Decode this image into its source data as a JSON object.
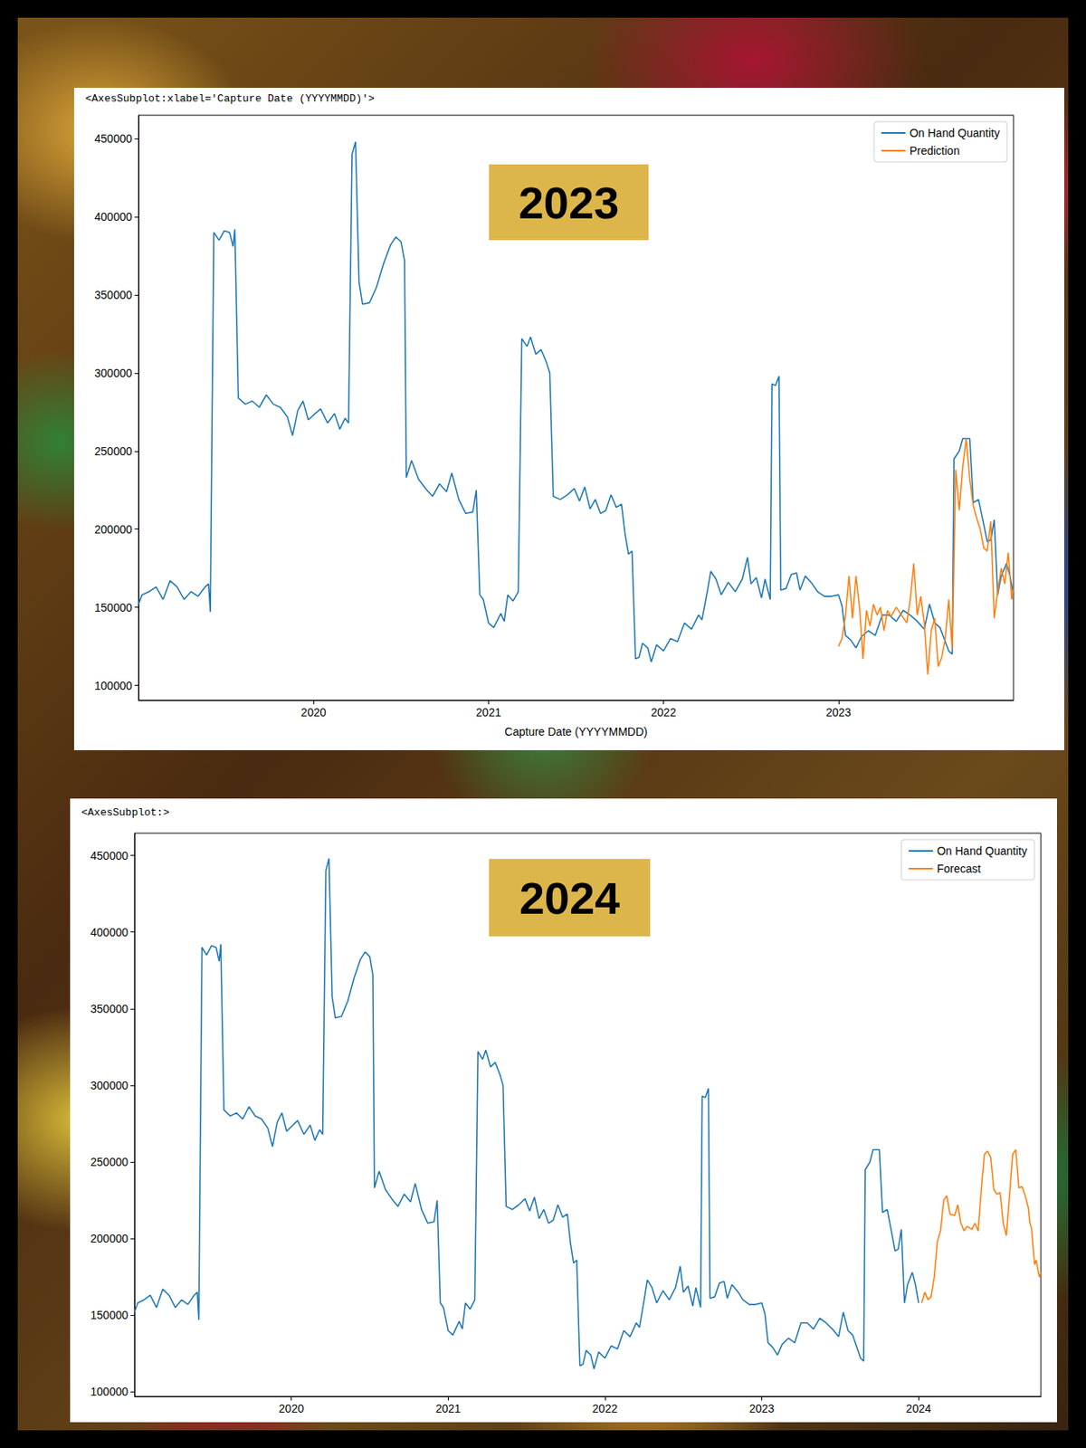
{
  "chart_data": [
    {
      "type": "line",
      "title": "2023",
      "x_label": "Capture Date (YYYYMMDD)",
      "annotations": [
        "<AxesSubplot:xlabel='Capture Date (YYYYMMDD)'>"
      ],
      "xlim": [
        2019.0,
        2024.0
      ],
      "xticks": [
        2020,
        2021,
        2022,
        2023
      ],
      "ylim": [
        90500,
        465000
      ],
      "yticks": [
        100000,
        150000,
        200000,
        250000,
        300000,
        350000,
        400000,
        450000
      ],
      "grid": false,
      "legend": "upper right",
      "series": [
        {
          "name": "On Hand Quantity",
          "color": "#1f77b4",
          "x": [
            2019.0,
            2019.02,
            2019.06,
            2019.1,
            2019.14,
            2019.18,
            2019.22,
            2019.26,
            2019.3,
            2019.34,
            2019.38,
            2019.4,
            2019.41,
            2019.43,
            2019.46,
            2019.49,
            2019.52,
            2019.54,
            2019.55,
            2019.57,
            2019.61,
            2019.65,
            2019.69,
            2019.73,
            2019.77,
            2019.81,
            2019.85,
            2019.88,
            2019.91,
            2019.94,
            2019.97,
            2020.0,
            2020.04,
            2020.08,
            2020.12,
            2020.15,
            2020.18,
            2020.2,
            2020.22,
            2020.24,
            2020.26,
            2020.28,
            2020.32,
            2020.36,
            2020.4,
            2020.44,
            2020.47,
            2020.5,
            2020.52,
            2020.53,
            2020.56,
            2020.6,
            2020.64,
            2020.68,
            2020.72,
            2020.76,
            2020.79,
            2020.83,
            2020.87,
            2020.91,
            2020.93,
            2020.95,
            2020.97,
            2021.0,
            2021.03,
            2021.07,
            2021.09,
            2021.11,
            2021.14,
            2021.17,
            2021.19,
            2021.22,
            2021.24,
            2021.27,
            2021.3,
            2021.33,
            2021.35,
            2021.37,
            2021.41,
            2021.45,
            2021.49,
            2021.52,
            2021.55,
            2021.58,
            2021.61,
            2021.64,
            2021.67,
            2021.7,
            2021.73,
            2021.76,
            2021.78,
            2021.8,
            2021.82,
            2021.84,
            2021.86,
            2021.88,
            2021.91,
            2021.93,
            2021.96,
            2022.0,
            2022.04,
            2022.08,
            2022.12,
            2022.16,
            2022.2,
            2022.22,
            2022.25,
            2022.27,
            2022.3,
            2022.33,
            2022.37,
            2022.41,
            2022.45,
            2022.48,
            2022.5,
            2022.53,
            2022.56,
            2022.58,
            2022.61,
            2022.62,
            2022.64,
            2022.66,
            2022.67,
            2022.7,
            2022.73,
            2022.76,
            2022.78,
            2022.81,
            2022.85,
            2022.88,
            2022.92,
            2022.96,
            2023.0,
            2023.02,
            2023.04,
            2023.07,
            2023.1,
            2023.13,
            2023.17,
            2023.21,
            2023.25,
            2023.29,
            2023.33,
            2023.37,
            2023.41,
            2023.45,
            2023.49,
            2023.52,
            2023.55,
            2023.58,
            2023.61,
            2023.63,
            2023.65,
            2023.66,
            2023.69,
            2023.71,
            2023.75,
            2023.77,
            2023.8,
            2023.83,
            2023.85,
            2023.87,
            2023.89,
            2023.91,
            2023.93,
            2023.96,
            2023.98,
            2024.0
          ],
          "values": [
            152000,
            158000,
            160000,
            163000,
            155000,
            167000,
            163000,
            155000,
            160000,
            157000,
            163000,
            165000,
            147000,
            390000,
            385000,
            391000,
            390000,
            381000,
            392000,
            284000,
            280000,
            282000,
            278000,
            286000,
            280000,
            278000,
            272000,
            260000,
            276000,
            282000,
            270000,
            273000,
            277000,
            268000,
            274000,
            264000,
            271000,
            268000,
            440000,
            448000,
            358000,
            344000,
            345000,
            355000,
            370000,
            382000,
            387000,
            384000,
            372000,
            233000,
            244000,
            232000,
            226000,
            221000,
            229000,
            224000,
            236000,
            219000,
            210000,
            211000,
            225000,
            158000,
            155000,
            140000,
            137000,
            146000,
            141000,
            158000,
            154000,
            160000,
            322000,
            317000,
            323000,
            312000,
            315000,
            307000,
            300000,
            221000,
            219000,
            222000,
            226000,
            218000,
            227000,
            213000,
            219000,
            210000,
            212000,
            222000,
            214000,
            216000,
            197000,
            184000,
            186000,
            117000,
            118000,
            127000,
            124000,
            115000,
            126000,
            122000,
            130000,
            128000,
            140000,
            136000,
            145000,
            142000,
            160000,
            173000,
            168000,
            158000,
            166000,
            160000,
            168000,
            182000,
            165000,
            169000,
            156000,
            168000,
            155000,
            293000,
            292000,
            298000,
            161000,
            162000,
            171000,
            172000,
            161000,
            170000,
            165000,
            160000,
            157000,
            157000,
            158000,
            151000,
            132000,
            129000,
            124000,
            131000,
            135000,
            132000,
            145000,
            145000,
            141000,
            148000,
            145000,
            141000,
            136000,
            152000,
            140000,
            137000,
            128000,
            122000,
            120000,
            245000,
            250000,
            258000,
            258000,
            217000,
            219000,
            203000,
            192000,
            193000,
            206000,
            158000,
            170000,
            178000,
            170000,
            158000
          ]
        },
        {
          "name": "Prediction",
          "color": "#ff7f0e",
          "x": [
            2023.0,
            2023.02,
            2023.04,
            2023.06,
            2023.08,
            2023.1,
            2023.12,
            2023.14,
            2023.16,
            2023.18,
            2023.2,
            2023.22,
            2023.24,
            2023.26,
            2023.28,
            2023.3,
            2023.33,
            2023.36,
            2023.39,
            2023.41,
            2023.43,
            2023.45,
            2023.47,
            2023.49,
            2023.51,
            2023.53,
            2023.55,
            2023.57,
            2023.59,
            2023.61,
            2023.63,
            2023.65,
            2023.67,
            2023.69,
            2023.71,
            2023.73,
            2023.75,
            2023.77,
            2023.79,
            2023.81,
            2023.83,
            2023.85,
            2023.87,
            2023.89,
            2023.91,
            2023.93,
            2023.95,
            2023.97,
            2023.99,
            2024.0
          ],
          "values": [
            125000,
            130000,
            145000,
            170000,
            143000,
            170000,
            150000,
            117000,
            148000,
            138000,
            152000,
            145000,
            150000,
            135000,
            148000,
            144000,
            150000,
            145000,
            140000,
            155000,
            178000,
            145000,
            157000,
            140000,
            107000,
            135000,
            143000,
            112000,
            118000,
            130000,
            155000,
            123000,
            238000,
            212000,
            240000,
            258000,
            232000,
            215000,
            207000,
            200000,
            188000,
            186000,
            205000,
            143000,
            160000,
            175000,
            165000,
            185000,
            155000,
            162000
          ]
        }
      ]
    },
    {
      "type": "line",
      "title": "2024",
      "annotations": [
        "<AxesSubplot:>"
      ],
      "xlim": [
        2019.0,
        2024.78
      ],
      "xticks": [
        2020,
        2021,
        2022,
        2023,
        2024
      ],
      "ylim": [
        97000,
        464500
      ],
      "yticks": [
        100000,
        150000,
        200000,
        250000,
        300000,
        350000,
        400000,
        450000
      ],
      "grid": false,
      "legend": "upper right",
      "series": [
        {
          "name": "On Hand Quantity",
          "color": "#1f77b4",
          "x": [
            2019.0,
            2019.02,
            2019.06,
            2019.1,
            2019.14,
            2019.18,
            2019.22,
            2019.26,
            2019.3,
            2019.34,
            2019.38,
            2019.4,
            2019.41,
            2019.43,
            2019.46,
            2019.49,
            2019.52,
            2019.54,
            2019.55,
            2019.57,
            2019.61,
            2019.65,
            2019.69,
            2019.73,
            2019.77,
            2019.81,
            2019.85,
            2019.88,
            2019.91,
            2019.94,
            2019.97,
            2020.0,
            2020.04,
            2020.08,
            2020.12,
            2020.15,
            2020.18,
            2020.2,
            2020.22,
            2020.24,
            2020.26,
            2020.28,
            2020.32,
            2020.36,
            2020.4,
            2020.44,
            2020.47,
            2020.5,
            2020.52,
            2020.53,
            2020.56,
            2020.6,
            2020.64,
            2020.68,
            2020.72,
            2020.76,
            2020.79,
            2020.83,
            2020.87,
            2020.91,
            2020.93,
            2020.95,
            2020.97,
            2021.0,
            2021.03,
            2021.07,
            2021.09,
            2021.11,
            2021.14,
            2021.17,
            2021.19,
            2021.22,
            2021.24,
            2021.27,
            2021.3,
            2021.33,
            2021.35,
            2021.37,
            2021.41,
            2021.45,
            2021.49,
            2021.52,
            2021.55,
            2021.58,
            2021.61,
            2021.64,
            2021.67,
            2021.7,
            2021.73,
            2021.76,
            2021.78,
            2021.8,
            2021.82,
            2021.84,
            2021.86,
            2021.88,
            2021.91,
            2021.93,
            2021.96,
            2022.0,
            2022.04,
            2022.08,
            2022.12,
            2022.16,
            2022.2,
            2022.22,
            2022.25,
            2022.27,
            2022.3,
            2022.33,
            2022.37,
            2022.41,
            2022.45,
            2022.48,
            2022.5,
            2022.53,
            2022.56,
            2022.58,
            2022.61,
            2022.62,
            2022.64,
            2022.66,
            2022.67,
            2022.7,
            2022.73,
            2022.76,
            2022.78,
            2022.81,
            2022.85,
            2022.88,
            2022.92,
            2022.96,
            2023.0,
            2023.02,
            2023.04,
            2023.07,
            2023.1,
            2023.13,
            2023.17,
            2023.21,
            2023.25,
            2023.29,
            2023.33,
            2023.37,
            2023.41,
            2023.45,
            2023.49,
            2023.52,
            2023.55,
            2023.58,
            2023.61,
            2023.63,
            2023.65,
            2023.66,
            2023.69,
            2023.71,
            2023.75,
            2023.77,
            2023.8,
            2023.83,
            2023.85,
            2023.87,
            2023.89,
            2023.91,
            2023.93,
            2023.96,
            2023.98,
            2024.0
          ],
          "values": [
            152000,
            158000,
            160000,
            163000,
            155000,
            167000,
            163000,
            155000,
            160000,
            157000,
            163000,
            165000,
            147000,
            390000,
            385000,
            391000,
            390000,
            381000,
            392000,
            284000,
            280000,
            282000,
            278000,
            286000,
            280000,
            278000,
            272000,
            260000,
            276000,
            282000,
            270000,
            273000,
            277000,
            268000,
            274000,
            264000,
            271000,
            268000,
            440000,
            448000,
            358000,
            344000,
            345000,
            355000,
            370000,
            382000,
            387000,
            384000,
            372000,
            233000,
            244000,
            232000,
            226000,
            221000,
            229000,
            224000,
            236000,
            219000,
            210000,
            211000,
            225000,
            158000,
            155000,
            140000,
            137000,
            146000,
            141000,
            158000,
            154000,
            160000,
            322000,
            317000,
            323000,
            312000,
            315000,
            307000,
            300000,
            221000,
            219000,
            222000,
            226000,
            218000,
            227000,
            213000,
            219000,
            210000,
            212000,
            222000,
            214000,
            216000,
            197000,
            184000,
            186000,
            117000,
            118000,
            127000,
            124000,
            115000,
            126000,
            122000,
            130000,
            128000,
            140000,
            136000,
            145000,
            142000,
            160000,
            173000,
            168000,
            158000,
            166000,
            160000,
            168000,
            182000,
            165000,
            169000,
            156000,
            168000,
            155000,
            293000,
            292000,
            298000,
            161000,
            162000,
            171000,
            172000,
            161000,
            170000,
            165000,
            160000,
            157000,
            157000,
            158000,
            151000,
            132000,
            129000,
            124000,
            131000,
            135000,
            132000,
            145000,
            145000,
            141000,
            148000,
            145000,
            141000,
            136000,
            152000,
            140000,
            137000,
            128000,
            122000,
            120000,
            245000,
            250000,
            258000,
            258000,
            217000,
            219000,
            203000,
            192000,
            193000,
            206000,
            158000,
            170000,
            178000,
            170000,
            158000
          ]
        },
        {
          "name": "Forecast",
          "color": "#ff7f0e",
          "x": [
            2024.02,
            2024.04,
            2024.06,
            2024.08,
            2024.1,
            2024.12,
            2024.14,
            2024.16,
            2024.18,
            2024.2,
            2024.23,
            2024.25,
            2024.27,
            2024.29,
            2024.31,
            2024.34,
            2024.36,
            2024.38,
            2024.4,
            2024.42,
            2024.44,
            2024.46,
            2024.48,
            2024.5,
            2024.52,
            2024.54,
            2024.56,
            2024.58,
            2024.6,
            2024.62,
            2024.64,
            2024.66,
            2024.68,
            2024.7,
            2024.71,
            2024.72,
            2024.73,
            2024.74,
            2024.75,
            2024.76,
            2024.77,
            2024.78
          ],
          "values": [
            158000,
            165000,
            160000,
            162000,
            175000,
            198000,
            205000,
            225000,
            228000,
            216000,
            215000,
            222000,
            210000,
            205000,
            208000,
            206000,
            210000,
            205000,
            232000,
            255000,
            257000,
            253000,
            232000,
            229000,
            230000,
            210000,
            202000,
            228000,
            255000,
            258000,
            233000,
            234000,
            228000,
            220000,
            210000,
            207000,
            195000,
            183000,
            186000,
            180000,
            175000,
            178000
          ]
        }
      ]
    }
  ]
}
